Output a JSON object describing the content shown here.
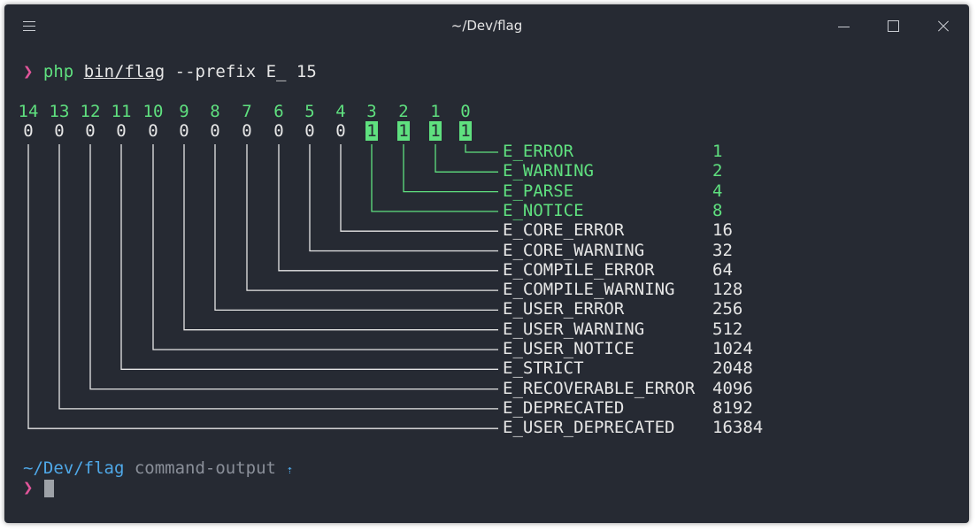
{
  "window": {
    "title": "~/Dev/flag"
  },
  "command": {
    "prompt": "❯",
    "program": "php",
    "path": "bin/flag",
    "args": " --prefix E_ 15"
  },
  "bits": [
    {
      "index": "14",
      "value": "0"
    },
    {
      "index": "13",
      "value": "0"
    },
    {
      "index": "12",
      "value": "0"
    },
    {
      "index": "11",
      "value": "0"
    },
    {
      "index": "10",
      "value": "0"
    },
    {
      "index": "9",
      "value": "0"
    },
    {
      "index": "8",
      "value": "0"
    },
    {
      "index": "7",
      "value": "0"
    },
    {
      "index": "6",
      "value": "0"
    },
    {
      "index": "5",
      "value": "0"
    },
    {
      "index": "4",
      "value": "0"
    },
    {
      "index": "3",
      "value": "1"
    },
    {
      "index": "2",
      "value": "1"
    },
    {
      "index": "1",
      "value": "1"
    },
    {
      "index": "0",
      "value": "1"
    }
  ],
  "flags": [
    {
      "name": "E_ERROR",
      "value": "1",
      "active": true
    },
    {
      "name": "E_WARNING",
      "value": "2",
      "active": true
    },
    {
      "name": "E_PARSE",
      "value": "4",
      "active": true
    },
    {
      "name": "E_NOTICE",
      "value": "8",
      "active": true
    },
    {
      "name": "E_CORE_ERROR",
      "value": "16",
      "active": false
    },
    {
      "name": "E_CORE_WARNING",
      "value": "32",
      "active": false
    },
    {
      "name": "E_COMPILE_ERROR",
      "value": "64",
      "active": false
    },
    {
      "name": "E_COMPILE_WARNING",
      "value": "128",
      "active": false
    },
    {
      "name": "E_USER_ERROR",
      "value": "256",
      "active": false
    },
    {
      "name": "E_USER_WARNING",
      "value": "512",
      "active": false
    },
    {
      "name": "E_USER_NOTICE",
      "value": "1024",
      "active": false
    },
    {
      "name": "E_STRICT",
      "value": "2048",
      "active": false
    },
    {
      "name": "E_RECOVERABLE_ERROR",
      "value": "4096",
      "active": false
    },
    {
      "name": "E_DEPRECATED",
      "value": "8192",
      "active": false
    },
    {
      "name": "E_USER_DEPRECATED",
      "value": "16384",
      "active": false
    }
  ],
  "status": {
    "cwd": "~/Dev/flag",
    "git": "command-output",
    "arrow": "⇡"
  },
  "colors": {
    "background": "#262a33",
    "green": "#5fe07f",
    "pink": "#e0559a",
    "blue": "#4fa8e8",
    "text": "#e6e6e6",
    "muted": "#8a8f99"
  }
}
